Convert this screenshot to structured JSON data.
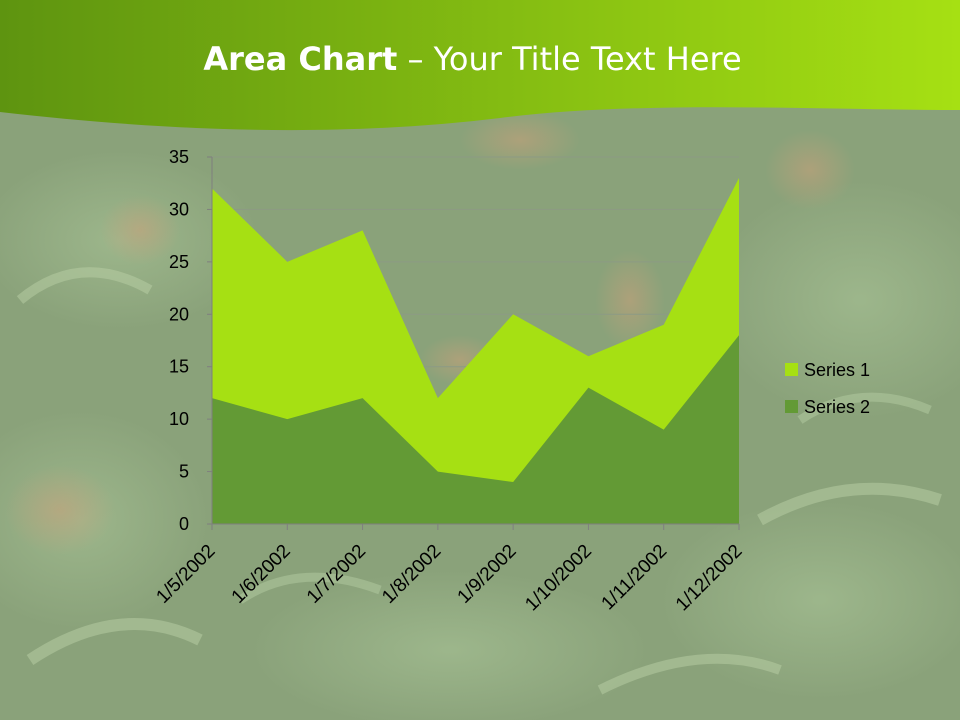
{
  "slide": {
    "title_bold": "Area Chart",
    "title_rest": " – Your Title Text Here",
    "background_description": "orange tree foliage photo, faded"
  },
  "chart_data": {
    "type": "area",
    "title": "",
    "xlabel": "",
    "ylabel": "",
    "categories": [
      "1/5/2002",
      "1/6/2002",
      "1/7/2002",
      "1/8/2002",
      "1/9/2002",
      "1/10/2002",
      "1/11/2002",
      "1/12/2002"
    ],
    "series": [
      {
        "name": "Series 1",
        "values": [
          32,
          25,
          28,
          12,
          20,
          16,
          19,
          33
        ],
        "color": "#a6e013"
      },
      {
        "name": "Series 2",
        "values": [
          12,
          10,
          12,
          5,
          4,
          13,
          9,
          18
        ],
        "color": "#639a35"
      }
    ],
    "ylim": [
      0,
      35
    ],
    "yticks": [
      0,
      5,
      10,
      15,
      20,
      25,
      30,
      35
    ],
    "grid": true,
    "legend_position": "right",
    "stacked": false
  },
  "colors": {
    "header_dark": "#5a9a0a",
    "header_light": "#a6e013",
    "axis": "#888888",
    "text": "#000000"
  }
}
